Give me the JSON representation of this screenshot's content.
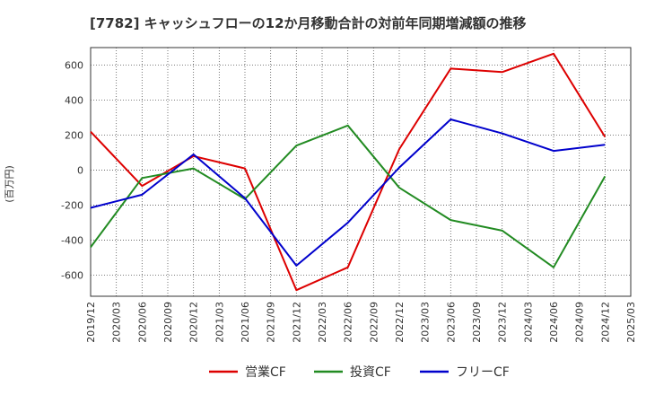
{
  "chart_data": {
    "type": "line",
    "title": "[7782]  キャッシュフローの12か月移動合計の対前年同期増減額の推移",
    "ylabel": "(百万円)",
    "xlabel": "",
    "ylim": [
      -720,
      700
    ],
    "yticks": [
      -600,
      -400,
      -200,
      0,
      200,
      400,
      600
    ],
    "grid": true,
    "legend_position": "bottom",
    "categories": [
      "2019/12",
      "2020/03",
      "2020/06",
      "2020/09",
      "2020/12",
      "2021/03",
      "2021/06",
      "2021/09",
      "2021/12",
      "2022/03",
      "2022/06",
      "2022/09",
      "2022/12",
      "2023/03",
      "2023/06",
      "2023/09",
      "2023/12",
      "2024/03",
      "2024/06",
      "2024/09",
      "2024/12",
      "2025/03"
    ],
    "series": [
      {
        "name": "営業CF",
        "color": "#dd0000",
        "values": [
          220,
          null,
          -90,
          null,
          80,
          null,
          10,
          null,
          -685,
          null,
          -555,
          null,
          120,
          null,
          580,
          null,
          560,
          null,
          665,
          null,
          190,
          null
        ]
      },
      {
        "name": "投資CF",
        "color": "#228b22",
        "values": [
          -440,
          null,
          -45,
          null,
          10,
          null,
          -165,
          null,
          140,
          null,
          255,
          null,
          -100,
          null,
          -285,
          null,
          -345,
          null,
          -555,
          null,
          -35,
          null
        ]
      },
      {
        "name": "フリーCF",
        "color": "#0000cc",
        "values": [
          -215,
          null,
          -140,
          null,
          90,
          null,
          -160,
          null,
          -545,
          null,
          -300,
          null,
          15,
          null,
          290,
          null,
          210,
          null,
          110,
          null,
          145,
          null
        ]
      }
    ]
  }
}
